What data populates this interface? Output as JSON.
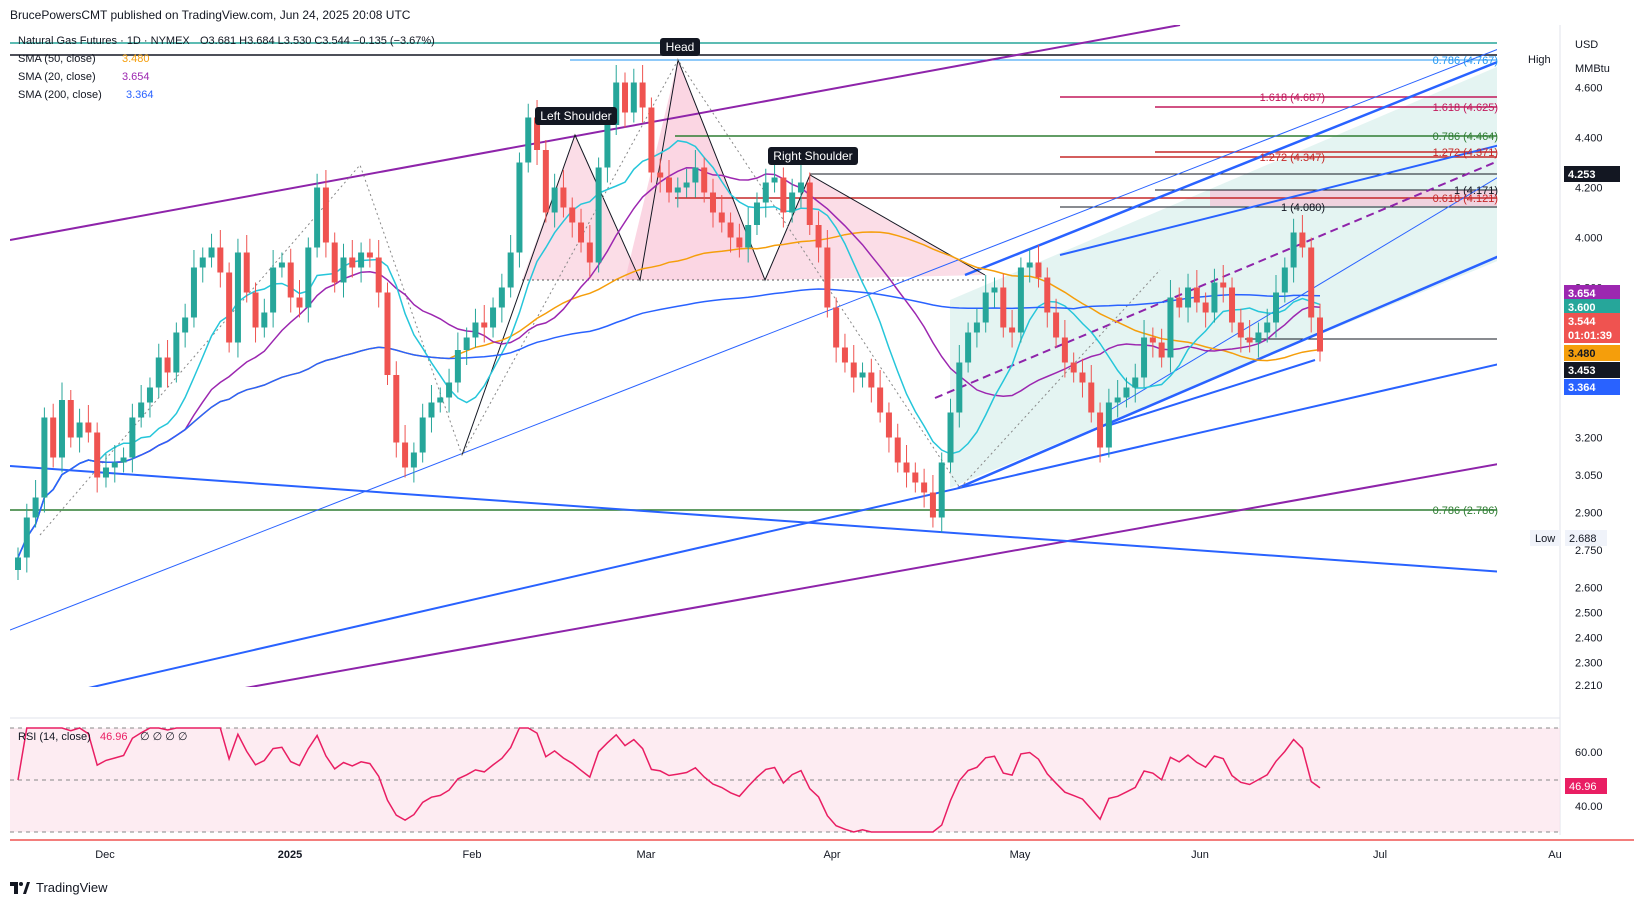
{
  "publisher": "BrucePowersCMT published on TradingView.com, Jun 24, 2025 20:08 UTC",
  "footer_brand": "TradingView",
  "legend": {
    "symbol": "Natural Gas Futures · 1D · NYMEX",
    "ohlc": "O3.681 H3.684 L3.530 C3.544 −0.135 (−3.67%)",
    "sma50": {
      "label": "SMA (50, close)",
      "value": "3.480",
      "color": "#f59e0b"
    },
    "sma20": {
      "label": "SMA (20, close)",
      "value": "3.654",
      "color": "#9c27b0"
    },
    "sma200": {
      "label": "SMA (200, close)",
      "value": "3.364",
      "color": "#2962ff"
    }
  },
  "axis": {
    "currency": "USD",
    "unit": "MMBtu",
    "ticks": [
      "4.600",
      "4.400",
      "4.200",
      "4.000",
      "3.800",
      "3.200",
      "3.050",
      "2.900",
      "2.750",
      "2.600",
      "2.500",
      "2.400",
      "2.300",
      "2.210"
    ],
    "high_label": "High",
    "low_label": "Low",
    "low_value": "2.688",
    "price_tags": [
      {
        "value": "4.253",
        "bg": "#131722",
        "fg": "#ffffff"
      },
      {
        "value": "3.654",
        "bg": "#9c27b0",
        "fg": "#ffffff"
      },
      {
        "value": "3.600",
        "bg": "#26a69a",
        "fg": "#ffffff"
      },
      {
        "value": "3.544",
        "bg": "#ef5350",
        "fg": "#ffffff"
      },
      {
        "value": "01:01:39",
        "bg": "#ef5350",
        "fg": "#ffffff"
      },
      {
        "value": "3.480",
        "bg": "#f59e0b",
        "fg": "#131722"
      },
      {
        "value": "3.453",
        "bg": "#131722",
        "fg": "#ffffff"
      },
      {
        "value": "3.364",
        "bg": "#2962ff",
        "fg": "#ffffff"
      }
    ]
  },
  "x_labels": [
    "Dec",
    "2025",
    "Feb",
    "Mar",
    "Apr",
    "May",
    "Jun",
    "Jul",
    "Au"
  ],
  "pattern_labels": {
    "head": "Head",
    "left": "Left Shoulder",
    "right": "Right Shoulder"
  },
  "fib_labels": [
    {
      "text": "0.786 (4.767)",
      "color": "#2196f3"
    },
    {
      "text": "1.618 (4.687)",
      "color": "#c2185b"
    },
    {
      "text": "1.618 (4.625)",
      "color": "#c2185b"
    },
    {
      "text": "0.786 (4.464)",
      "color": "#2e7d32"
    },
    {
      "text": "1.272 (4.371)",
      "color": "#c62828"
    },
    {
      "text": "1.272 (4.347)",
      "color": "#c62828"
    },
    {
      "text": "1 (4.171)",
      "color": "#131722"
    },
    {
      "text": "0.618 (4.121)",
      "color": "#c62828"
    },
    {
      "text": "1 (4.080)",
      "color": "#131722"
    },
    {
      "text": "0.786 (2.786)",
      "color": "#2e7d32"
    }
  ],
  "rsi": {
    "label": "RSI (14, close)",
    "value": "46.96",
    "extras": "∅ ∅ ∅ ∅",
    "ticks": [
      "60.00",
      "40.00"
    ],
    "color": "#e91e63"
  },
  "chart_data": {
    "type": "candlestick",
    "symbol": "Natural Gas Futures, 1D, NYMEX",
    "last": {
      "open": 3.681,
      "high": 3.684,
      "low": 3.53,
      "close": 3.544,
      "change": -0.135,
      "change_pct": -3.67
    },
    "sma": {
      "sma50": 3.48,
      "sma20": 3.654,
      "sma200": 3.364
    },
    "y_range": [
      2.15,
      4.85
    ],
    "closes": [
      2.72,
      2.88,
      2.96,
      3.28,
      3.12,
      3.35,
      3.2,
      3.26,
      3.22,
      3.04,
      3.08,
      3.1,
      3.12,
      3.28,
      3.34,
      3.4,
      3.52,
      3.46,
      3.62,
      3.68,
      3.88,
      3.92,
      3.96,
      3.86,
      3.58,
      3.94,
      3.78,
      3.64,
      3.7,
      3.88,
      3.9,
      3.76,
      3.72,
      3.96,
      4.2,
      3.98,
      3.82,
      3.92,
      3.88,
      3.94,
      3.92,
      3.78,
      3.45,
      3.18,
      3.08,
      3.14,
      3.28,
      3.34,
      3.36,
      3.42,
      3.55,
      3.6,
      3.66,
      3.64,
      3.72,
      3.8,
      3.94,
      4.3,
      4.48,
      4.35,
      4.1,
      4.2,
      4.12,
      4.06,
      3.98,
      3.9,
      4.28,
      4.45,
      4.62,
      4.5,
      4.62,
      4.52,
      4.26,
      4.24,
      4.18,
      4.2,
      4.22,
      4.28,
      4.18,
      4.1,
      4.06,
      4.0,
      3.96,
      4.05,
      4.14,
      4.22,
      4.24,
      4.1,
      4.18,
      4.22,
      4.05,
      3.96,
      3.72,
      3.56,
      3.5,
      3.44,
      3.46,
      3.4,
      3.3,
      3.2,
      3.1,
      3.06,
      3.02,
      2.98,
      2.88,
      3.1,
      3.3,
      3.5,
      3.62,
      3.66,
      3.78,
      3.8,
      3.64,
      3.62,
      3.88,
      3.9,
      3.84,
      3.7,
      3.6,
      3.5,
      3.46,
      3.42,
      3.3,
      3.16,
      3.34,
      3.36,
      3.4,
      3.44,
      3.6,
      3.58,
      3.52,
      3.76,
      3.72,
      3.8,
      3.74,
      3.7,
      3.82,
      3.8,
      3.66,
      3.6,
      3.58,
      3.62,
      3.66,
      3.78,
      3.88,
      4.02,
      3.96,
      3.68,
      3.544
    ]
  }
}
